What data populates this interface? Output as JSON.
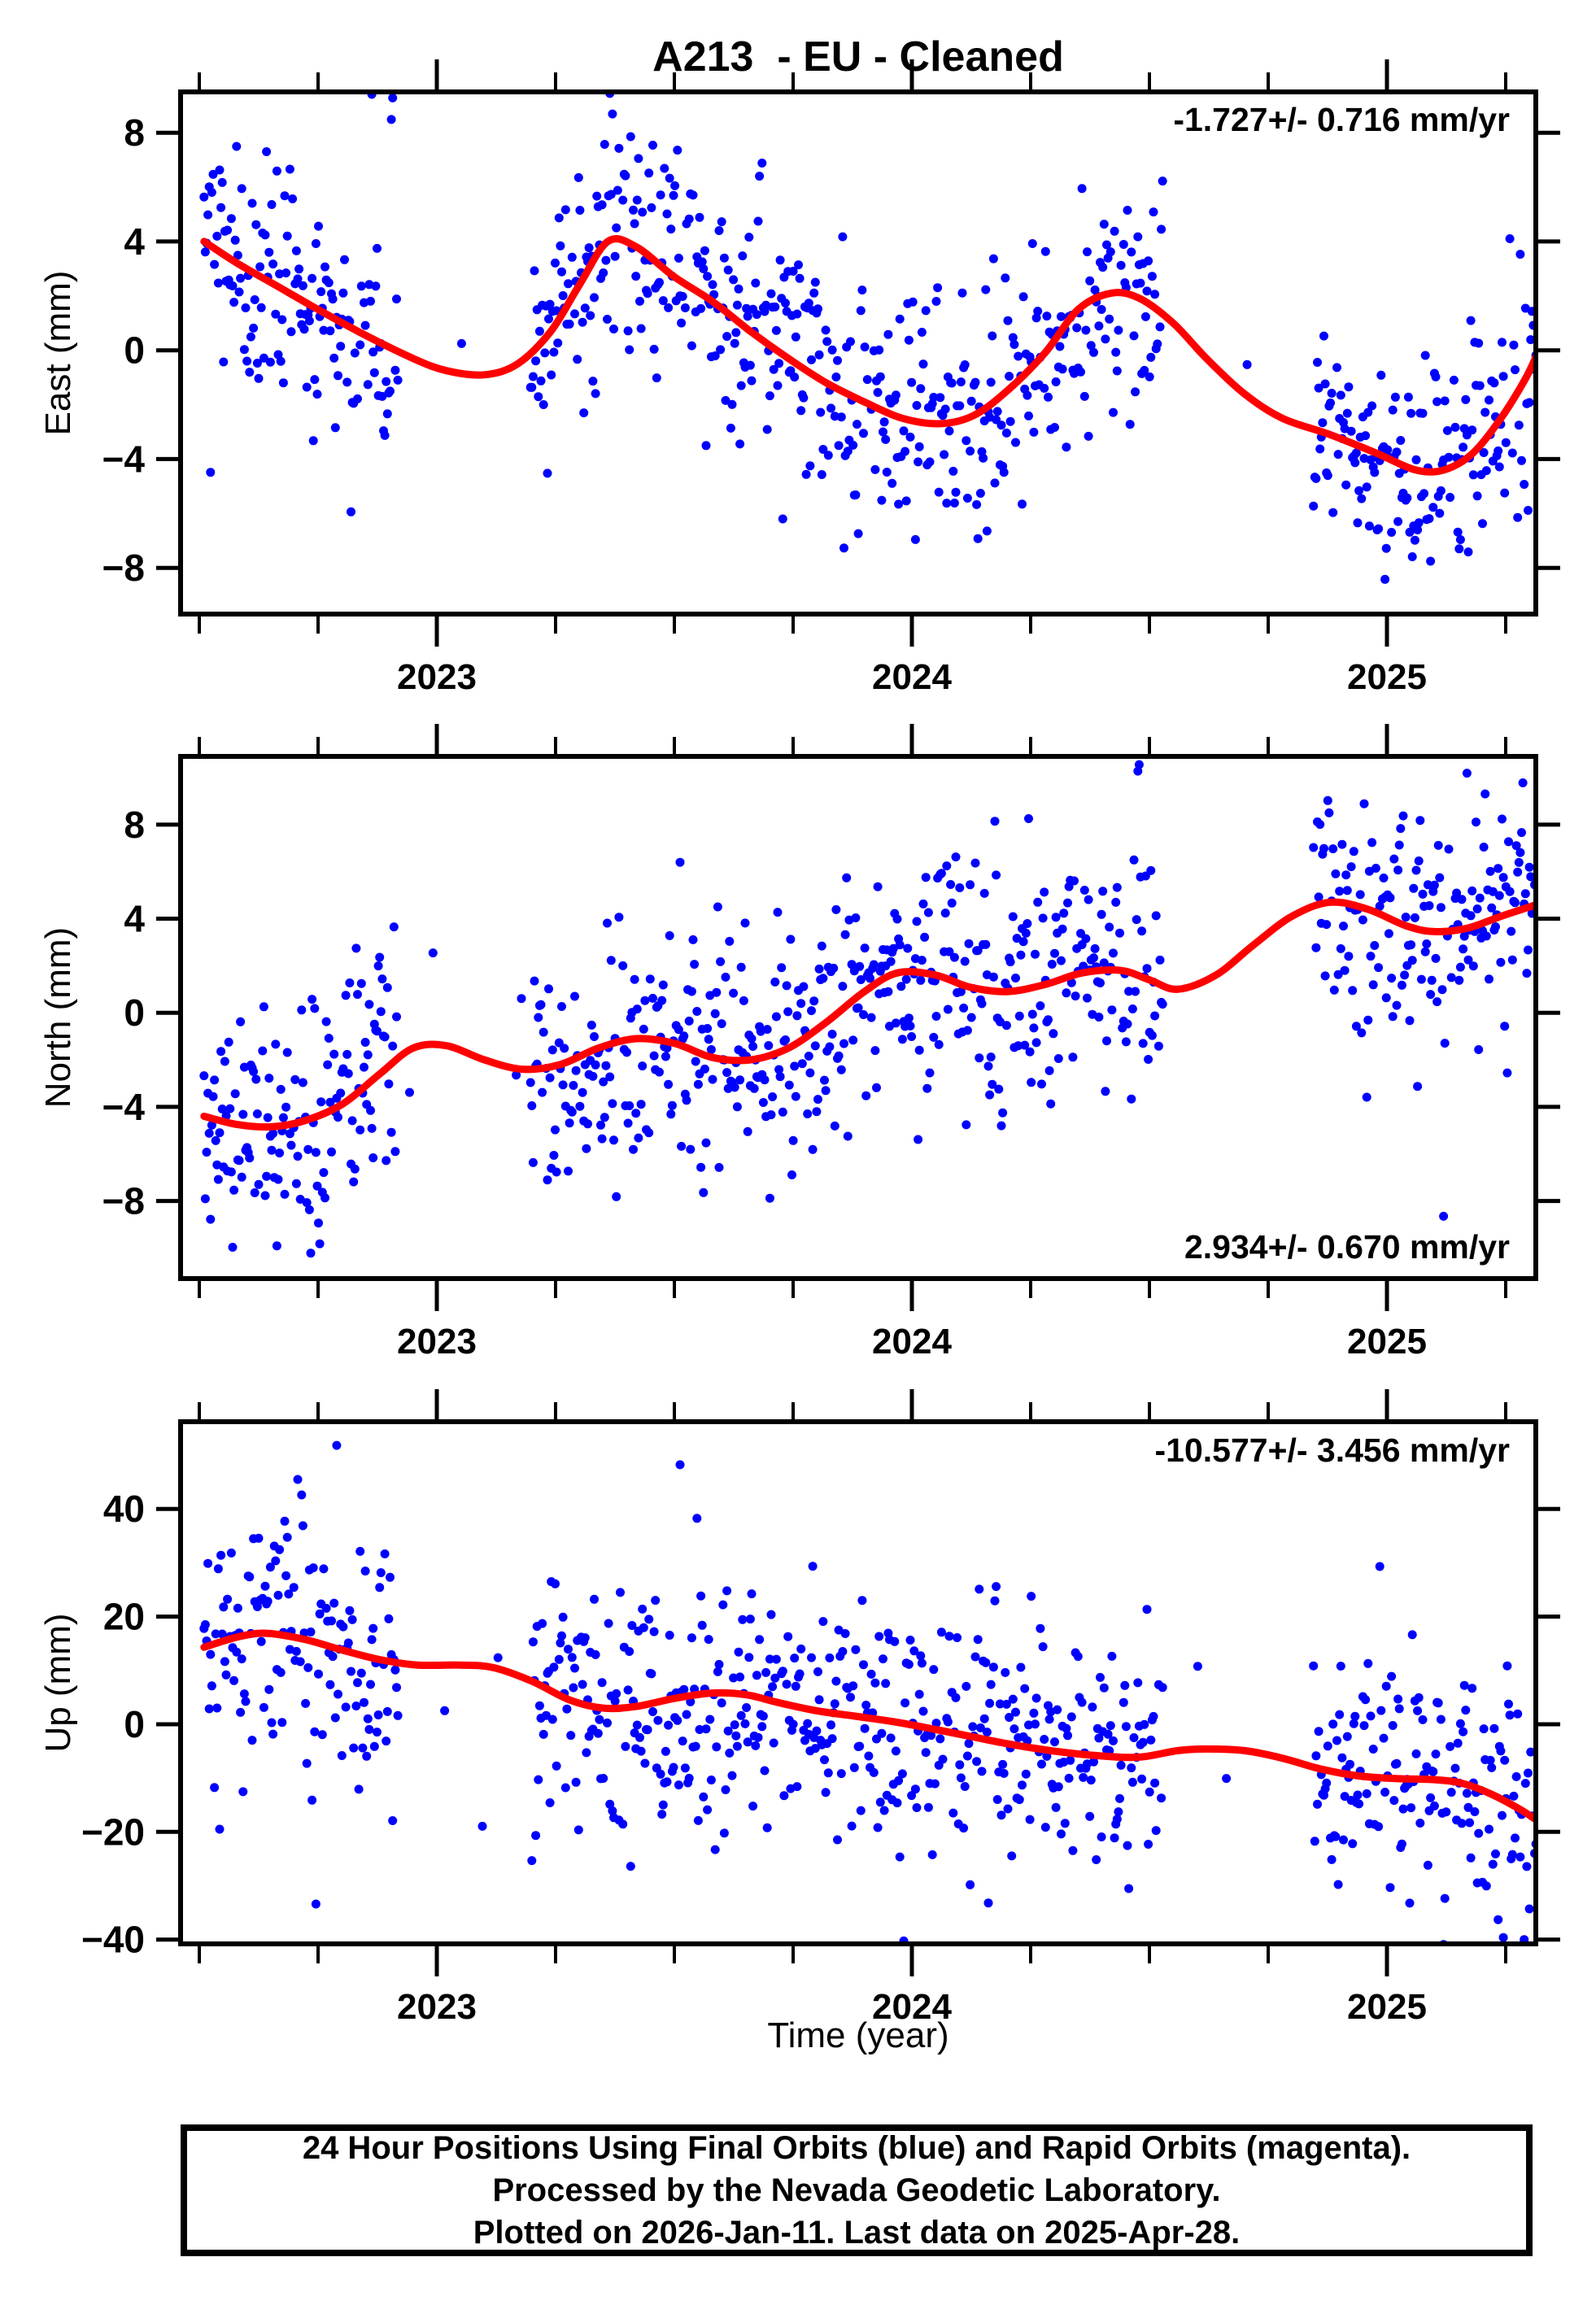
{
  "title": "A213  - EU - Cleaned",
  "caption": {
    "lines": [
      "24 Hour Positions Using Final Orbits (blue) and Rapid Orbits (magenta).",
      "Processed by the Nevada Geodetic Laboratory.",
      "Plotted on 2026-Jan-11. Last data on 2025-Apr-28."
    ]
  },
  "chart_data": {
    "type": "scatter",
    "title": "A213  - EU - Cleaned",
    "xlabel": "Time (year)",
    "xlim": [
      2022.4606,
      2025.3134
    ],
    "x_ticks_major": [
      2023,
      2024,
      2025
    ],
    "x_tick_minor_interval": 0.25,
    "x_data_range": [
      2022.51,
      2025.315
    ],
    "data_gaps": [
      [
        2022.92,
        2023.195
      ],
      [
        2024.53,
        2024.845
      ]
    ],
    "gap_keep_fraction": 0.015,
    "missing_day_fraction": 0.08,
    "point_color": "#0000ff",
    "trend_color": "#ff0000",
    "frame_color": "#000000",
    "legend": "blue = Final Orbits daily positions, red = smoothed trend",
    "panels": [
      {
        "name": "east",
        "ylabel": "East (mm)",
        "ylim": [
          -9.7,
          9.5
        ],
        "yticks": [
          8,
          4,
          0,
          -4,
          -8
        ],
        "rate_label": "-1.727+/- 0.716 mm/yr",
        "rate_pos": "top-right",
        "scatter": {
          "seed": 42,
          "sigma": 2.15,
          "sigma2": 2.15,
          "sigma_break": 2023.1,
          "outlier_frac": 0.06,
          "outlier_mult": 1.9
        },
        "trend": {
          "x": [
            2022.51,
            2022.58,
            2022.66,
            2022.75,
            2022.85,
            2022.95,
            2023.02,
            2023.1,
            2023.17,
            2023.24,
            2023.3,
            2023.36,
            2023.42,
            2023.5,
            2023.58,
            2023.66,
            2023.74,
            2023.82,
            2023.9,
            2023.98,
            2024.06,
            2024.13,
            2024.2,
            2024.28,
            2024.35,
            2024.42,
            2024.48,
            2024.55,
            2024.62,
            2024.7,
            2024.78,
            2024.88,
            2024.98,
            2025.06,
            2025.12,
            2025.18,
            2025.24,
            2025.29,
            2025.315
          ],
          "y": [
            4.0,
            3.2,
            2.4,
            1.5,
            0.55,
            -0.3,
            -0.75,
            -0.9,
            -0.5,
            0.7,
            2.4,
            4.0,
            3.8,
            2.7,
            1.8,
            0.7,
            -0.3,
            -1.2,
            -1.9,
            -2.5,
            -2.7,
            -2.4,
            -1.5,
            -0.1,
            1.5,
            2.1,
            1.9,
            1.0,
            -0.3,
            -1.6,
            -2.5,
            -3.1,
            -3.8,
            -4.4,
            -4.4,
            -3.8,
            -2.5,
            -1.1,
            -0.2
          ]
        }
      },
      {
        "name": "north",
        "ylabel": "North (mm)",
        "ylim": [
          -11.3,
          10.9
        ],
        "yticks": [
          8,
          4,
          0,
          -4,
          -8
        ],
        "rate_label": "2.934+/- 0.670 mm/yr",
        "rate_pos": "bottom-right",
        "scatter": {
          "seed": 1337,
          "sigma": 2.55,
          "sigma2": 2.45,
          "sigma_break": 2023.1,
          "outlier_frac": 0.06,
          "outlier_mult": 1.8
        },
        "trend": {
          "x": [
            2022.51,
            2022.58,
            2022.65,
            2022.72,
            2022.8,
            2022.88,
            2022.95,
            2023.02,
            2023.1,
            2023.18,
            2023.26,
            2023.34,
            2023.42,
            2023.5,
            2023.58,
            2023.66,
            2023.74,
            2023.82,
            2023.9,
            2023.97,
            2024.05,
            2024.12,
            2024.2,
            2024.28,
            2024.36,
            2024.44,
            2024.5,
            2024.56,
            2024.64,
            2024.72,
            2024.8,
            2024.88,
            2024.96,
            2025.04,
            2025.1,
            2025.17,
            2025.24,
            2025.315
          ],
          "y": [
            -4.4,
            -4.75,
            -4.85,
            -4.6,
            -3.9,
            -2.6,
            -1.5,
            -1.4,
            -2.0,
            -2.4,
            -2.2,
            -1.5,
            -1.1,
            -1.3,
            -1.9,
            -2.0,
            -1.5,
            -0.4,
            0.9,
            1.7,
            1.6,
            1.1,
            0.9,
            1.2,
            1.7,
            1.8,
            1.4,
            1.0,
            1.6,
            2.9,
            4.1,
            4.7,
            4.4,
            3.7,
            3.45,
            3.6,
            4.1,
            4.6
          ]
        }
      },
      {
        "name": "up",
        "ylabel": "Up (mm)",
        "ylim": [
          -40.8,
          56.2
        ],
        "yticks": [
          40,
          20,
          0,
          -20,
          -40
        ],
        "rate_label": "-10.577+/- 3.456 mm/yr",
        "rate_pos": "top-right",
        "scatter": {
          "seed": 2025,
          "sigma": 13.0,
          "sigma2": 10.8,
          "sigma_break": 2023.1,
          "outlier_frac": 0.05,
          "outlier_mult": 1.7
        },
        "trend": {
          "x": [
            2022.51,
            2022.58,
            2022.64,
            2022.72,
            2022.8,
            2022.88,
            2022.96,
            2023.05,
            2023.12,
            2023.2,
            2023.28,
            2023.35,
            2023.42,
            2023.5,
            2023.58,
            2023.65,
            2023.72,
            2023.8,
            2023.88,
            2023.96,
            2024.04,
            2024.12,
            2024.2,
            2024.3,
            2024.4,
            2024.48,
            2024.56,
            2024.62,
            2024.7,
            2024.78,
            2024.86,
            2024.94,
            2025.02,
            2025.1,
            2025.16,
            2025.22,
            2025.28,
            2025.315
          ],
          "y": [
            14.3,
            16.2,
            16.9,
            15.8,
            13.8,
            12.0,
            11.0,
            11.0,
            10.5,
            8.0,
            4.5,
            3.0,
            3.3,
            4.8,
            5.8,
            5.5,
            4.0,
            2.5,
            1.5,
            0.5,
            -0.8,
            -2.2,
            -3.6,
            -5.0,
            -5.9,
            -6.1,
            -4.9,
            -4.6,
            -4.9,
            -6.3,
            -8.3,
            -9.6,
            -10.1,
            -10.3,
            -11.0,
            -13.0,
            -15.8,
            -17.8
          ]
        }
      }
    ]
  }
}
